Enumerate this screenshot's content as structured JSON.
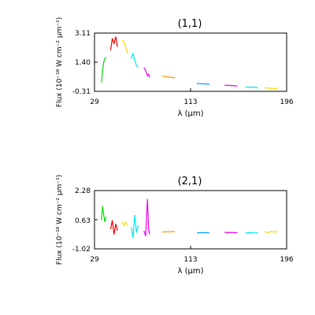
{
  "chart_data": [
    {
      "type": "line",
      "title": "(1,1)",
      "xlabel": "λ (μm)",
      "ylabel": "Flux (10⁻¹⁸ W cm⁻² μm⁻¹)",
      "xlim": [
        29,
        196
      ],
      "ylim": [
        -0.31,
        3.11
      ],
      "xticks": [
        "29",
        "113",
        "196"
      ],
      "yticks": [
        "3.11",
        "1.40",
        "-0.31"
      ],
      "grid": false,
      "series": [
        {
          "color": "#00dd00",
          "x": [
            35.0,
            36.0,
            37.0,
            38.0,
            39.0
          ],
          "y": [
            0.2,
            0.9,
            1.4,
            1.6,
            1.7
          ]
        },
        {
          "color": "#ee0000",
          "x": [
            43.0,
            44.5,
            46.0,
            47.5,
            49.0
          ],
          "y": [
            2.1,
            2.8,
            2.5,
            2.9,
            2.3
          ]
        },
        {
          "color": "#ffd500",
          "x": [
            53.0,
            54.5,
            56.0,
            57.0,
            58.0
          ],
          "y": [
            2.7,
            2.6,
            2.3,
            2.1,
            1.9
          ]
        },
        {
          "color": "#00e5ee",
          "x": [
            61.0,
            62.5,
            64.0,
            65.5,
            67.0
          ],
          "y": [
            1.6,
            1.9,
            1.5,
            1.2,
            1.1
          ]
        },
        {
          "color": "#ee00ee",
          "x": [
            72.0,
            73.5,
            75.0,
            76.0,
            77.0
          ],
          "y": [
            1.1,
            0.9,
            0.6,
            0.7,
            0.5
          ]
        },
        {
          "color": "#ff9900",
          "x": [
            88.0,
            91.0,
            94.0,
            97.0,
            99.0
          ],
          "y": [
            0.58,
            0.55,
            0.52,
            0.5,
            0.48
          ]
        },
        {
          "color": "#0099ff",
          "x": [
            118.0,
            121.0,
            124.0,
            127.0,
            129.0
          ],
          "y": [
            0.15,
            0.14,
            0.13,
            0.12,
            0.1
          ]
        },
        {
          "color": "#ee00ee",
          "x": [
            142.0,
            145.0,
            148.0,
            151.0,
            153.0
          ],
          "y": [
            0.05,
            0.04,
            0.03,
            0.02,
            0.0
          ]
        },
        {
          "color": "#00e5ee",
          "x": [
            160.0,
            163.0,
            166.0,
            169.0,
            171.0
          ],
          "y": [
            -0.05,
            -0.07,
            -0.06,
            -0.08,
            -0.1
          ]
        },
        {
          "color": "#ffd500",
          "x": [
            177.0,
            180.0,
            183.0,
            186.0,
            188.0
          ],
          "y": [
            -0.1,
            -0.12,
            -0.14,
            -0.13,
            -0.15
          ]
        }
      ]
    },
    {
      "type": "line",
      "title": "(2,1)",
      "xlabel": "λ (μm)",
      "ylabel": "Flux (10⁻¹⁸ W cm⁻² μm⁻¹)",
      "xlim": [
        29,
        196
      ],
      "ylim": [
        -1.02,
        2.28
      ],
      "xticks": [
        "29",
        "113",
        "196"
      ],
      "yticks": [
        "2.28",
        "0.63",
        "-1.02"
      ],
      "grid": false,
      "series": [
        {
          "color": "#00dd00",
          "x": [
            35.0,
            36.0,
            37.0,
            38.0,
            39.0
          ],
          "y": [
            0.6,
            1.4,
            0.9,
            0.5,
            0.8
          ]
        },
        {
          "color": "#ee0000",
          "x": [
            43.0,
            44.5,
            46.0,
            47.5,
            49.0
          ],
          "y": [
            0.1,
            0.6,
            -0.2,
            0.4,
            0.0
          ]
        },
        {
          "color": "#ffd500",
          "x": [
            53.0,
            54.5,
            56.0,
            57.0,
            58.0
          ],
          "y": [
            0.5,
            0.3,
            0.5,
            0.4,
            0.3
          ]
        },
        {
          "color": "#00e5ee",
          "x": [
            61.0,
            62.5,
            64.0,
            65.5,
            67.0
          ],
          "y": [
            0.2,
            -0.4,
            0.9,
            -0.1,
            0.3
          ]
        },
        {
          "color": "#ee00ee",
          "x": [
            72.0,
            73.5,
            75.0,
            76.0,
            77.0
          ],
          "y": [
            0.0,
            -0.3,
            1.8,
            0.1,
            -0.2
          ]
        },
        {
          "color": "#ff9900",
          "x": [
            88.0,
            91.0,
            94.0,
            97.0,
            99.0
          ],
          "y": [
            -0.08,
            -0.05,
            -0.06,
            -0.04,
            -0.05
          ]
        },
        {
          "color": "#0099ff",
          "x": [
            118.0,
            121.0,
            124.0,
            127.0,
            129.0
          ],
          "y": [
            -0.12,
            -0.1,
            -0.11,
            -0.1,
            -0.12
          ]
        },
        {
          "color": "#ee00ee",
          "x": [
            142.0,
            145.0,
            148.0,
            151.0,
            153.0
          ],
          "y": [
            -0.08,
            -0.1,
            -0.09,
            -0.11,
            -0.1
          ]
        },
        {
          "color": "#00e5ee",
          "x": [
            160.0,
            163.0,
            166.0,
            169.0,
            171.0
          ],
          "y": [
            -0.12,
            -0.1,
            -0.11,
            -0.12,
            -0.1
          ]
        },
        {
          "color": "#ffd500",
          "x": [
            177.0,
            180.0,
            183.0,
            186.0,
            188.0
          ],
          "y": [
            -0.05,
            -0.1,
            -0.03,
            -0.08,
            0.0
          ]
        }
      ]
    }
  ]
}
